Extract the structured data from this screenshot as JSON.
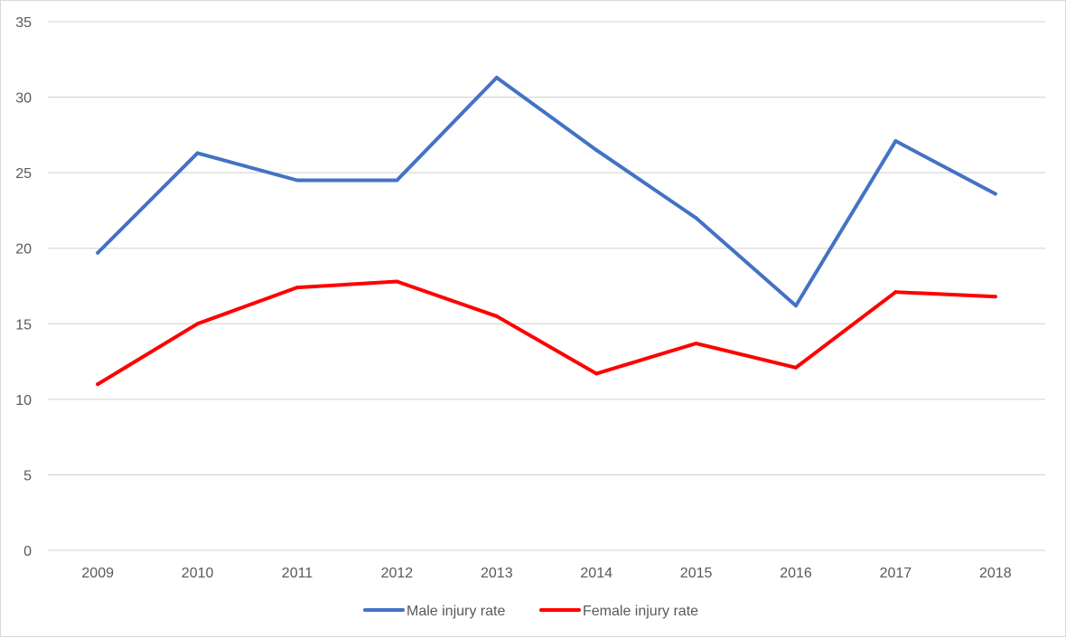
{
  "chart_data": {
    "type": "line",
    "categories": [
      "2009",
      "2010",
      "2011",
      "2012",
      "2013",
      "2014",
      "2015",
      "2016",
      "2017",
      "2018"
    ],
    "series": [
      {
        "name": "Male injury rate",
        "values": [
          19.7,
          26.3,
          24.5,
          24.5,
          31.3,
          26.5,
          22.0,
          16.2,
          27.1,
          23.6
        ],
        "color": "#4472c4"
      },
      {
        "name": "Female injury rate",
        "values": [
          11.0,
          15.0,
          17.4,
          17.8,
          15.5,
          11.7,
          13.7,
          12.1,
          17.1,
          16.8
        ],
        "color": "#ff0000"
      }
    ],
    "yticks": [
      "0",
      "5",
      "10",
      "15",
      "20",
      "25",
      "30",
      "35"
    ],
    "ylim": [
      0,
      35
    ],
    "title": "",
    "xlabel": "",
    "ylabel": "",
    "grid": true,
    "legend": "bottom"
  }
}
